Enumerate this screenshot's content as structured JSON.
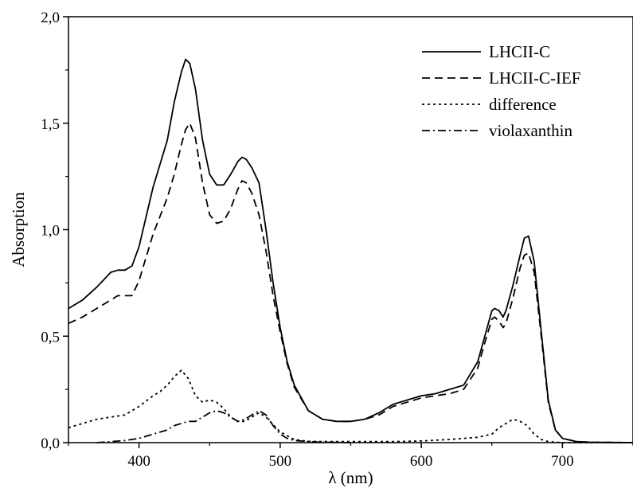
{
  "chart_data": {
    "type": "line",
    "title": "",
    "xlabel": "λ (nm)",
    "ylabel": "Absorption",
    "xlim": [
      350,
      750
    ],
    "ylim": [
      0,
      2.0
    ],
    "x_ticks": [
      400,
      500,
      600,
      700
    ],
    "x_tick_labels": [
      "400",
      "500",
      "600",
      "700"
    ],
    "y_ticks": [
      0,
      0.5,
      1.0,
      1.5,
      2.0
    ],
    "y_tick_labels": [
      "0,0",
      "0,5",
      "1,0",
      "1,5",
      "2,0"
    ],
    "grid": false,
    "legend_position": "top-right",
    "series": [
      {
        "name": "LHCII-C",
        "style": "solid",
        "color": "#000000",
        "x": [
          350,
          360,
          370,
          380,
          385,
          390,
          395,
          400,
          410,
          420,
          425,
          430,
          433,
          436,
          440,
          445,
          450,
          455,
          460,
          465,
          470,
          473,
          476,
          480,
          485,
          490,
          495,
          500,
          505,
          510,
          520,
          530,
          540,
          550,
          560,
          570,
          580,
          590,
          600,
          610,
          620,
          630,
          640,
          645,
          650,
          652,
          655,
          658,
          660,
          665,
          670,
          673,
          676,
          680,
          685,
          690,
          695,
          700,
          710,
          720,
          750
        ],
        "y": [
          0.63,
          0.67,
          0.73,
          0.8,
          0.81,
          0.81,
          0.83,
          0.92,
          1.2,
          1.42,
          1.6,
          1.74,
          1.8,
          1.78,
          1.66,
          1.42,
          1.26,
          1.21,
          1.21,
          1.26,
          1.32,
          1.34,
          1.33,
          1.29,
          1.22,
          1.0,
          0.75,
          0.54,
          0.38,
          0.27,
          0.15,
          0.11,
          0.1,
          0.1,
          0.11,
          0.14,
          0.18,
          0.2,
          0.22,
          0.23,
          0.25,
          0.27,
          0.38,
          0.5,
          0.62,
          0.63,
          0.62,
          0.59,
          0.62,
          0.74,
          0.88,
          0.96,
          0.97,
          0.85,
          0.52,
          0.2,
          0.06,
          0.02,
          0.005,
          0.002,
          0.0
        ]
      },
      {
        "name": "LHCII-C-IEF",
        "style": "dashed",
        "color": "#000000",
        "x": [
          350,
          360,
          370,
          380,
          385,
          390,
          395,
          400,
          410,
          420,
          425,
          430,
          433,
          436,
          440,
          445,
          450,
          455,
          460,
          465,
          470,
          473,
          476,
          480,
          485,
          490,
          495,
          500,
          505,
          510,
          520,
          530,
          540,
          550,
          560,
          570,
          580,
          590,
          600,
          610,
          620,
          630,
          640,
          645,
          650,
          652,
          655,
          658,
          660,
          665,
          670,
          673,
          676,
          680,
          685,
          690,
          695,
          700,
          710,
          720,
          750
        ],
        "y": [
          0.56,
          0.59,
          0.63,
          0.67,
          0.69,
          0.69,
          0.69,
          0.76,
          0.98,
          1.15,
          1.26,
          1.4,
          1.47,
          1.5,
          1.43,
          1.22,
          1.07,
          1.03,
          1.04,
          1.1,
          1.19,
          1.23,
          1.22,
          1.17,
          1.07,
          0.9,
          0.69,
          0.52,
          0.37,
          0.26,
          0.15,
          0.11,
          0.1,
          0.1,
          0.11,
          0.13,
          0.17,
          0.19,
          0.21,
          0.22,
          0.23,
          0.25,
          0.35,
          0.47,
          0.58,
          0.59,
          0.57,
          0.54,
          0.56,
          0.68,
          0.82,
          0.88,
          0.89,
          0.8,
          0.5,
          0.19,
          0.06,
          0.02,
          0.005,
          0.002,
          0.0
        ]
      },
      {
        "name": "difference",
        "style": "dotted",
        "color": "#000000",
        "x": [
          350,
          360,
          370,
          380,
          390,
          400,
          410,
          415,
          420,
          425,
          430,
          435,
          440,
          445,
          450,
          455,
          460,
          465,
          470,
          475,
          480,
          485,
          490,
          500,
          510,
          520,
          540,
          560,
          580,
          600,
          620,
          640,
          650,
          655,
          660,
          665,
          670,
          675,
          680,
          685,
          690,
          700,
          750
        ],
        "y": [
          0.07,
          0.09,
          0.11,
          0.12,
          0.13,
          0.17,
          0.22,
          0.24,
          0.27,
          0.31,
          0.34,
          0.3,
          0.22,
          0.19,
          0.2,
          0.19,
          0.16,
          0.12,
          0.1,
          0.1,
          0.12,
          0.14,
          0.12,
          0.05,
          0.015,
          0.006,
          0.005,
          0.005,
          0.005,
          0.008,
          0.015,
          0.025,
          0.04,
          0.07,
          0.09,
          0.11,
          0.1,
          0.08,
          0.04,
          0.015,
          0.005,
          0.0,
          0.0
        ]
      },
      {
        "name": "violaxanthin",
        "style": "dashdot",
        "color": "#000000",
        "x": [
          370,
          380,
          390,
          400,
          410,
          420,
          425,
          430,
          435,
          440,
          445,
          450,
          455,
          460,
          465,
          470,
          475,
          480,
          485,
          490,
          495,
          500,
          505,
          510,
          520,
          530,
          540,
          550
        ],
        "y": [
          0.0,
          0.005,
          0.01,
          0.02,
          0.04,
          0.06,
          0.08,
          0.09,
          0.1,
          0.1,
          0.12,
          0.14,
          0.15,
          0.14,
          0.12,
          0.1,
          0.11,
          0.13,
          0.15,
          0.13,
          0.08,
          0.04,
          0.02,
          0.01,
          0.005,
          0.002,
          0.001,
          0.0
        ]
      }
    ]
  }
}
